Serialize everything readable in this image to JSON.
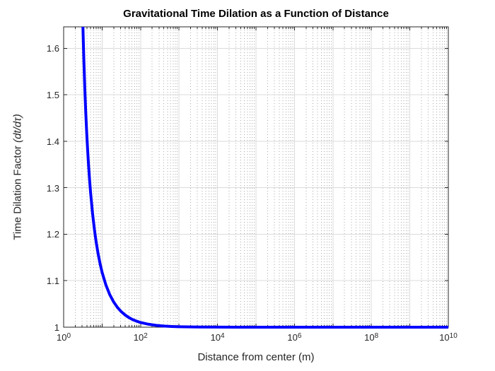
{
  "figure": {
    "background": "#ffffff"
  },
  "chart_data": {
    "type": "line",
    "title": "Gravitational Time Dilation as a Function of Distance",
    "xlabel": "Distance from center (m)",
    "ylabel": "Time Dilation Factor (dt/dτ)",
    "ylabel_plain": "Time Dilation Factor ",
    "ylabel_italic": "(dt/dτ)",
    "x_scale": "log10",
    "xlim_log10": [
      0,
      10
    ],
    "ylim": [
      1,
      1.6462
    ],
    "x_tick_base": "10",
    "x_tick_exponents": [
      0,
      2,
      4,
      6,
      8,
      10
    ],
    "y_ticks": [
      1,
      1.1,
      1.2,
      1.3,
      1.4,
      1.5,
      1.6
    ],
    "grid": "on",
    "x_minor_grid": "on",
    "y_minor_grid": "off",
    "legend": "none",
    "colors": {
      "curve": "#0000ff",
      "major_grid": "#dbdbdb",
      "minor_grid": "#a9a9a9",
      "axis": "#262626",
      "tick_label": "#262626",
      "title": "#000000"
    },
    "series": [
      {
        "name": "time-dilation-curve",
        "color": "#0000ff",
        "line_width": 4,
        "x_log10": [
          0.33,
          0.35,
          0.375,
          0.4,
          0.425,
          0.45,
          0.475,
          0.5,
          0.525,
          0.55,
          0.575,
          0.6,
          0.625,
          0.65,
          0.675,
          0.7,
          0.75,
          0.8,
          0.85,
          0.9,
          0.95,
          1.0,
          1.1,
          1.2,
          1.3,
          1.4,
          1.5,
          1.6,
          1.7,
          1.8,
          1.9,
          2.0,
          2.2,
          2.4,
          2.6,
          2.8,
          3.0,
          3.5,
          4.0,
          4.5,
          5.0,
          6.0,
          7.0,
          8.0,
          9.0,
          10.0
        ],
        "y": [
          3.936,
          3.063,
          2.527,
          2.215,
          2.007,
          1.856,
          1.741,
          1.6496,
          1.5754,
          1.5139,
          1.462,
          1.4176,
          1.3792,
          1.3457,
          1.3161,
          1.29,
          1.2458,
          1.21,
          1.1806,
          1.1561,
          1.1355,
          1.118,
          1.0904,
          1.0698,
          1.0543,
          1.0424,
          1.0332,
          1.0261,
          1.0204,
          1.0161,
          1.0128,
          1.0101,
          1.0064,
          1.004,
          1.0025,
          1.0016,
          1.001,
          1.0003,
          1.0001,
          1.00003,
          1.00001,
          1.0,
          1.0,
          1.0,
          1.0,
          1.0
        ]
      }
    ]
  }
}
